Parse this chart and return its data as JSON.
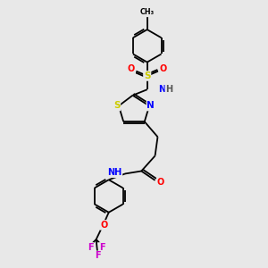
{
  "bg_color": "#e8e8e8",
  "bond_color": "#000000",
  "atom_colors": {
    "S": "#cccc00",
    "N": "#0000ff",
    "O": "#ff0000",
    "F": "#cc00cc",
    "C": "#000000",
    "H": "#555555"
  },
  "figsize": [
    3.0,
    3.0
  ],
  "dpi": 100,
  "xlim": [
    0,
    10
  ],
  "ylim": [
    0,
    10
  ]
}
